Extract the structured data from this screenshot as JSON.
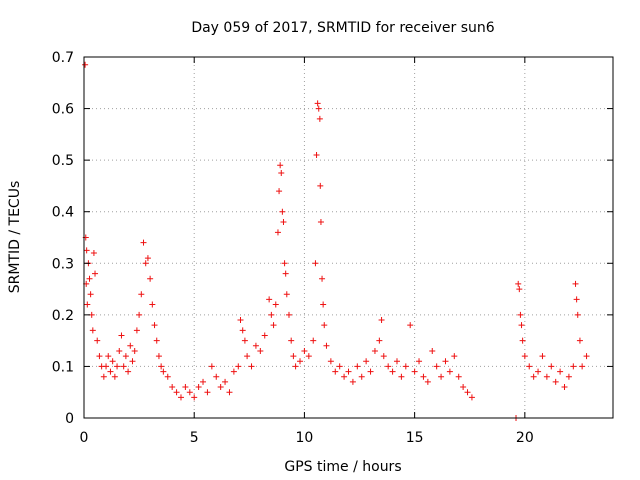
{
  "chart_data": {
    "type": "scatter",
    "title": "Day 059 of 2017, SRMTID for receiver sun6",
    "xlabel": "GPS time / hours",
    "ylabel": "SRMTID / TECUs",
    "xlim": [
      0,
      24
    ],
    "ylim": [
      0,
      0.7
    ],
    "xticks": [
      0,
      5,
      10,
      15,
      20
    ],
    "yticks": [
      0,
      0.1,
      0.2,
      0.3,
      0.4,
      0.5,
      0.6,
      0.7
    ],
    "grid": true,
    "marker": "+",
    "color": "#ee1111",
    "series": [
      {
        "name": "SRMTID",
        "points": [
          [
            0.05,
            0.685
          ],
          [
            0.08,
            0.35
          ],
          [
            0.12,
            0.325
          ],
          [
            0.2,
            0.3
          ],
          [
            0.25,
            0.27
          ],
          [
            0.3,
            0.24
          ],
          [
            0.35,
            0.2
          ],
          [
            0.4,
            0.17
          ],
          [
            0.45,
            0.32
          ],
          [
            0.5,
            0.28
          ],
          [
            0.1,
            0.26
          ],
          [
            0.15,
            0.22
          ],
          [
            0.6,
            0.15
          ],
          [
            0.7,
            0.12
          ],
          [
            0.8,
            0.1
          ],
          [
            0.9,
            0.08
          ],
          [
            1.0,
            0.1
          ],
          [
            1.1,
            0.12
          ],
          [
            1.2,
            0.09
          ],
          [
            1.3,
            0.11
          ],
          [
            1.4,
            0.08
          ],
          [
            1.5,
            0.1
          ],
          [
            1.6,
            0.13
          ],
          [
            1.7,
            0.16
          ],
          [
            1.8,
            0.1
          ],
          [
            1.9,
            0.12
          ],
          [
            2.0,
            0.09
          ],
          [
            2.1,
            0.14
          ],
          [
            2.2,
            0.11
          ],
          [
            2.3,
            0.13
          ],
          [
            2.4,
            0.17
          ],
          [
            2.5,
            0.2
          ],
          [
            2.6,
            0.24
          ],
          [
            2.7,
            0.34
          ],
          [
            2.8,
            0.3
          ],
          [
            2.9,
            0.31
          ],
          [
            3.0,
            0.27
          ],
          [
            3.1,
            0.22
          ],
          [
            3.2,
            0.18
          ],
          [
            3.3,
            0.15
          ],
          [
            3.4,
            0.12
          ],
          [
            3.5,
            0.1
          ],
          [
            3.6,
            0.09
          ],
          [
            3.8,
            0.08
          ],
          [
            4.0,
            0.06
          ],
          [
            4.2,
            0.05
          ],
          [
            4.4,
            0.04
          ],
          [
            4.6,
            0.06
          ],
          [
            4.8,
            0.05
          ],
          [
            5.0,
            0.04
          ],
          [
            5.2,
            0.06
          ],
          [
            5.4,
            0.07
          ],
          [
            5.6,
            0.05
          ],
          [
            5.8,
            0.1
          ],
          [
            6.0,
            0.08
          ],
          [
            6.2,
            0.06
          ],
          [
            6.4,
            0.07
          ],
          [
            6.6,
            0.05
          ],
          [
            6.8,
            0.09
          ],
          [
            7.0,
            0.1
          ],
          [
            7.1,
            0.19
          ],
          [
            7.2,
            0.17
          ],
          [
            7.3,
            0.15
          ],
          [
            7.4,
            0.12
          ],
          [
            7.6,
            0.1
          ],
          [
            7.8,
            0.14
          ],
          [
            8.0,
            0.13
          ],
          [
            8.2,
            0.16
          ],
          [
            8.4,
            0.23
          ],
          [
            8.5,
            0.2
          ],
          [
            8.6,
            0.18
          ],
          [
            8.7,
            0.22
          ],
          [
            8.8,
            0.36
          ],
          [
            8.85,
            0.44
          ],
          [
            8.9,
            0.49
          ],
          [
            8.95,
            0.475
          ],
          [
            9.0,
            0.4
          ],
          [
            9.05,
            0.38
          ],
          [
            9.1,
            0.3
          ],
          [
            9.15,
            0.28
          ],
          [
            9.2,
            0.24
          ],
          [
            9.3,
            0.2
          ],
          [
            9.4,
            0.15
          ],
          [
            9.5,
            0.12
          ],
          [
            9.6,
            0.1
          ],
          [
            9.8,
            0.11
          ],
          [
            10.0,
            0.13
          ],
          [
            10.2,
            0.12
          ],
          [
            10.4,
            0.15
          ],
          [
            10.5,
            0.3
          ],
          [
            10.55,
            0.51
          ],
          [
            10.6,
            0.61
          ],
          [
            10.65,
            0.6
          ],
          [
            10.7,
            0.58
          ],
          [
            10.72,
            0.45
          ],
          [
            10.75,
            0.38
          ],
          [
            10.8,
            0.27
          ],
          [
            10.85,
            0.22
          ],
          [
            10.9,
            0.18
          ],
          [
            11.0,
            0.14
          ],
          [
            11.2,
            0.11
          ],
          [
            11.4,
            0.09
          ],
          [
            11.6,
            0.1
          ],
          [
            11.8,
            0.08
          ],
          [
            12.0,
            0.09
          ],
          [
            12.2,
            0.07
          ],
          [
            12.4,
            0.1
          ],
          [
            12.6,
            0.08
          ],
          [
            12.8,
            0.11
          ],
          [
            13.0,
            0.09
          ],
          [
            13.2,
            0.13
          ],
          [
            13.4,
            0.15
          ],
          [
            13.5,
            0.19
          ],
          [
            13.6,
            0.12
          ],
          [
            13.8,
            0.1
          ],
          [
            14.0,
            0.09
          ],
          [
            14.2,
            0.11
          ],
          [
            14.4,
            0.08
          ],
          [
            14.6,
            0.1
          ],
          [
            14.8,
            0.18
          ],
          [
            15.0,
            0.09
          ],
          [
            15.2,
            0.11
          ],
          [
            15.4,
            0.08
          ],
          [
            15.6,
            0.07
          ],
          [
            15.8,
            0.13
          ],
          [
            16.0,
            0.1
          ],
          [
            16.2,
            0.08
          ],
          [
            16.4,
            0.11
          ],
          [
            16.6,
            0.09
          ],
          [
            16.8,
            0.12
          ],
          [
            17.0,
            0.08
          ],
          [
            17.2,
            0.06
          ],
          [
            17.4,
            0.05
          ],
          [
            17.6,
            0.04
          ],
          [
            19.6,
            0.0
          ],
          [
            19.7,
            0.26
          ],
          [
            19.75,
            0.25
          ],
          [
            19.8,
            0.2
          ],
          [
            19.85,
            0.18
          ],
          [
            19.9,
            0.15
          ],
          [
            20.0,
            0.12
          ],
          [
            20.2,
            0.1
          ],
          [
            20.4,
            0.08
          ],
          [
            20.6,
            0.09
          ],
          [
            20.8,
            0.12
          ],
          [
            21.0,
            0.08
          ],
          [
            21.2,
            0.1
          ],
          [
            21.4,
            0.07
          ],
          [
            21.6,
            0.09
          ],
          [
            21.8,
            0.06
          ],
          [
            22.0,
            0.08
          ],
          [
            22.2,
            0.1
          ],
          [
            22.3,
            0.26
          ],
          [
            22.35,
            0.23
          ],
          [
            22.4,
            0.2
          ],
          [
            22.5,
            0.15
          ],
          [
            22.6,
            0.1
          ],
          [
            22.8,
            0.12
          ]
        ]
      }
    ]
  }
}
